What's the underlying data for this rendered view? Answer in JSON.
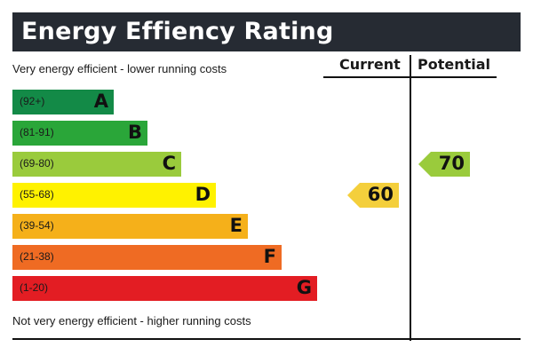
{
  "title": "Energy Effiency Rating",
  "top_description": "Very energy efficient - lower running costs",
  "bottom_description": "Not very energy efficient - higher running costs",
  "columns": {
    "current": "Current",
    "potential": "Potential"
  },
  "chart_data": {
    "type": "bar",
    "categories": [
      "A",
      "B",
      "C",
      "D",
      "E",
      "F",
      "G"
    ],
    "ranges": [
      "(92+)",
      "(81-91)",
      "(69-80)",
      "(55-68)",
      "(39-54)",
      "(21-38)",
      "(1-20)"
    ],
    "colors": [
      "#138a47",
      "#2aa639",
      "#9acb3c",
      "#fff200",
      "#f5b01a",
      "#ef6b23",
      "#e31d23"
    ],
    "current": {
      "value": "60",
      "band": "D",
      "color": "#f4cf3c"
    },
    "potential": {
      "value": "70",
      "band": "C",
      "color": "#9acb3c"
    }
  }
}
